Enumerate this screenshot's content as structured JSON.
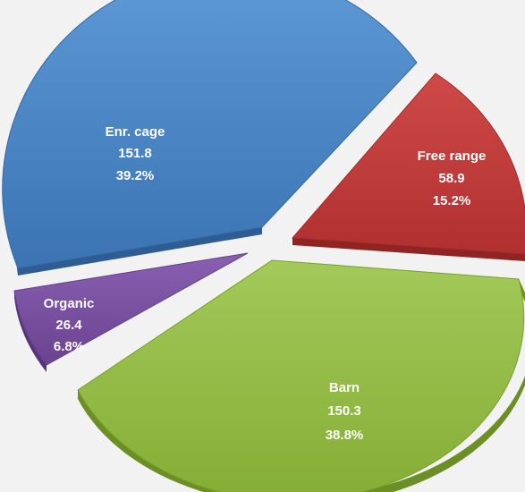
{
  "chart_data": {
    "type": "pie",
    "style": "3d-exploded",
    "slices": [
      {
        "label": "Enr. cage",
        "value": 151.8,
        "percent": "39.2%",
        "color": "#4a86c6"
      },
      {
        "label": "Free range",
        "value": 58.9,
        "percent": "15.2%",
        "color": "#c0393b"
      },
      {
        "label": "Barn",
        "value": 150.3,
        "percent": "38.8%",
        "color": "#8db53c"
      },
      {
        "label": "Organic",
        "value": 26.4,
        "percent": "6.8%",
        "color": "#7a4fa0"
      }
    ],
    "background": "#f2f2f2"
  }
}
